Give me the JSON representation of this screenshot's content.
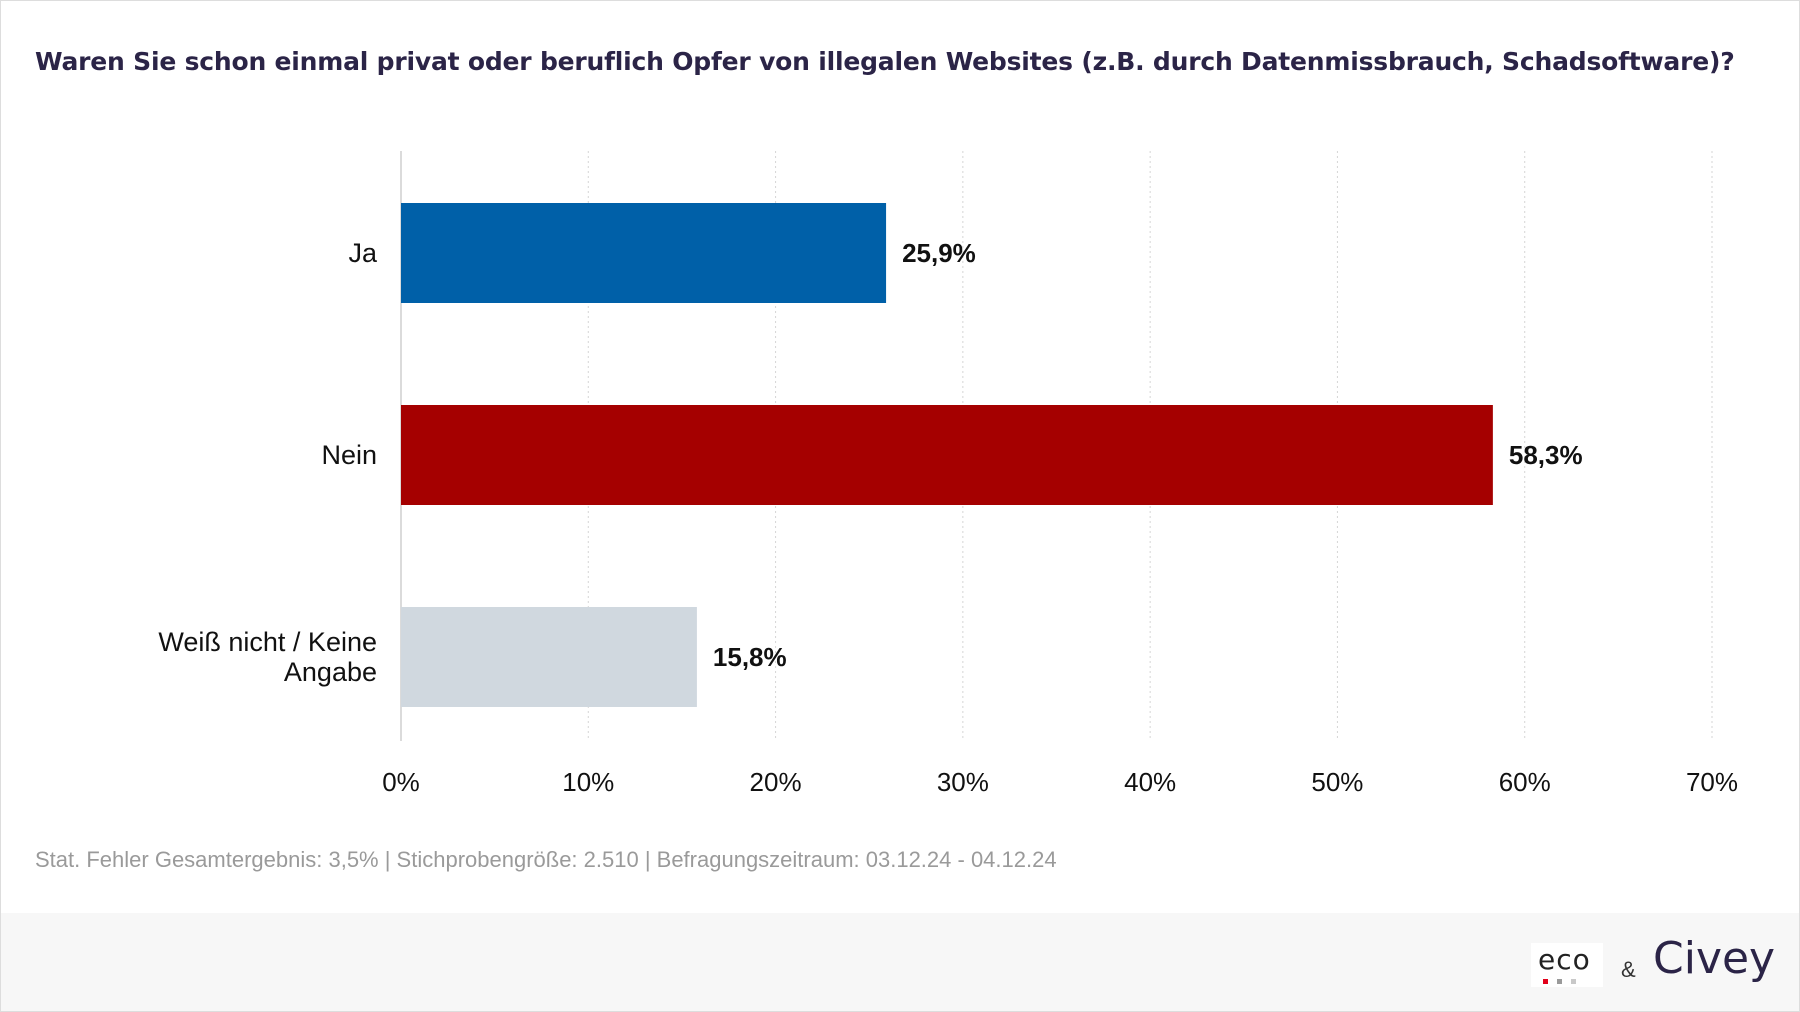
{
  "title": "Waren Sie schon einmal privat oder beruflich Opfer von illegalen Websites (z.B. durch Datenmissbrauch, Schadsoftware)?",
  "chart_data": {
    "type": "bar",
    "orientation": "horizontal",
    "categories": [
      [
        "Ja"
      ],
      [
        "Nein"
      ],
      [
        "Weiß nicht / Keine",
        "Angabe"
      ]
    ],
    "values": [
      25.9,
      58.3,
      15.8
    ],
    "value_labels": [
      "25,9%",
      "58,3%",
      "15,8%"
    ],
    "colors": [
      "#0060a8",
      "#a50000",
      "#d0d8df"
    ],
    "xlim": [
      0,
      70
    ],
    "xticks": [
      0,
      10,
      20,
      30,
      40,
      50,
      60,
      70
    ],
    "xtick_labels": [
      "0%",
      "10%",
      "20%",
      "30%",
      "40%",
      "50%",
      "60%",
      "70%"
    ],
    "grid": true,
    "xlabel": "",
    "ylabel": ""
  },
  "footnote": "Stat. Fehler Gesamtergebnis: 3,5% | Stichprobengröße: 2.510 | Befragungszeitraum: 03.12.24 - 04.12.24",
  "footer": {
    "logo_eco": "eco",
    "ampersand": "&",
    "logo_civey": "Civey",
    "eco_dot_colors": [
      "#e2001a",
      "#9a9a9a",
      "#c8c8c8"
    ]
  }
}
